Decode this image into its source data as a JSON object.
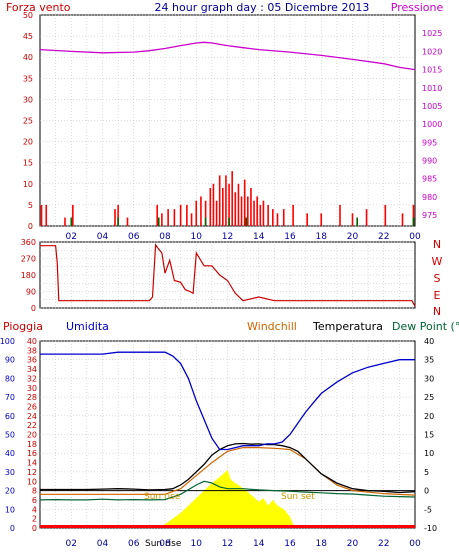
{
  "header": {
    "left_label": "Forza vento",
    "title": "24 hour graph day : 05 Dicembre 2013",
    "right_label": "Pressione"
  },
  "colors": {
    "wind": "#cc0000",
    "gust": "#ff0000",
    "pressure": "#cc00cc",
    "direction": "#cc0000",
    "rain": "#ff0000",
    "humidity": "#0000cc",
    "windchill": "#cc6600",
    "temperature": "#000000",
    "dewpoint": "#006633",
    "solar": "#ffff00",
    "axis_left": "#cc0000",
    "axis_right_pressure": "#cc00cc",
    "title": "#000099",
    "grid": "#bbbbbb",
    "frame": "#000000"
  },
  "x_tick_labels": [
    "02",
    "04",
    "06",
    "08",
    "10",
    "12",
    "14",
    "16",
    "18",
    "20",
    "22",
    "00"
  ],
  "panel_bottom": {
    "labels": {
      "rain": "Pioggia",
      "humidity": "Umidita",
      "windchill": "Windchill",
      "temperature": "Temperatura",
      "dewpoint": "Dew Point (°C",
      "sunrise_marker": "Sun rise",
      "sunset_marker": "Sun set",
      "sunrise_bottom": "Sun rise"
    }
  },
  "chart_data": [
    {
      "id": "wind-pressure",
      "type": "bar",
      "x_hours": [
        0,
        24
      ],
      "y_left": {
        "label": "Forza vento",
        "ylim": [
          0,
          50
        ],
        "ticks": [
          0,
          5,
          10,
          15,
          20,
          25,
          30,
          35,
          40,
          45,
          50
        ]
      },
      "y_right": {
        "label": "Pressione",
        "ylim": [
          972,
          1030
        ],
        "ticks": [
          975,
          980,
          985,
          990,
          995,
          1000,
          1005,
          1010,
          1015,
          1020,
          1025
        ]
      },
      "grid": true,
      "pressure": {
        "x": [
          0,
          2,
          4,
          6,
          7,
          8,
          9,
          10,
          10.5,
          11,
          12,
          13,
          14,
          16,
          18,
          20,
          22,
          23,
          24
        ],
        "y": [
          1020.5,
          1020.0,
          1019.6,
          1019.8,
          1020.2,
          1020.8,
          1021.6,
          1022.3,
          1022.5,
          1022.3,
          1021.6,
          1021.0,
          1020.5,
          1019.8,
          1018.9,
          1017.8,
          1016.6,
          1015.6,
          1015.0
        ]
      },
      "wind": {
        "x": [
          0.1,
          0.4,
          1.6,
          2.1,
          4.8,
          5.0,
          5.6,
          7.5,
          7.8,
          8.2,
          8.6,
          9.0,
          9.4,
          9.7,
          10.0,
          10.3,
          10.6,
          10.9,
          11.1,
          11.3,
          11.5,
          11.7,
          11.9,
          12.1,
          12.3,
          12.5,
          12.7,
          12.9,
          13.1,
          13.3,
          13.5,
          13.7,
          13.9,
          14.1,
          14.3,
          14.6,
          14.9,
          15.2,
          15.6,
          16.2,
          17.1,
          18.0,
          19.2,
          20.0,
          20.9,
          22.1,
          23.2,
          23.9
        ],
        "values": [
          5,
          5,
          2,
          5,
          4,
          5,
          2,
          5,
          3,
          4,
          4,
          5,
          5,
          3,
          6,
          7,
          6,
          9,
          10,
          6,
          12,
          9,
          12,
          10,
          13,
          8,
          10,
          7,
          11,
          7,
          9,
          6,
          7,
          5,
          6,
          5,
          4,
          3,
          4,
          5,
          3,
          3,
          5,
          3,
          4,
          5,
          3,
          5
        ]
      },
      "gust_ticks": {
        "x": [
          2.0,
          5.0,
          7.6,
          10.6,
          12.1,
          13.2,
          20.3,
          23.9
        ],
        "values": [
          2,
          2,
          2,
          2,
          2,
          2,
          2,
          2
        ]
      }
    },
    {
      "id": "wind-direction",
      "type": "line",
      "x_hours": [
        0,
        24
      ],
      "y_left": {
        "ylim": [
          0,
          360
        ],
        "ticks": [
          0,
          45,
          90,
          135,
          180,
          225,
          270,
          315,
          360
        ]
      },
      "y_right_labels": [
        "N",
        "W",
        "S",
        "E",
        "N"
      ],
      "grid": true,
      "series": [
        {
          "x": [
            0,
            1,
            1.1,
            1.2,
            2,
            3,
            4,
            5,
            6,
            7,
            7.2,
            7.4,
            7.6,
            7.8,
            8,
            8.3,
            8.6,
            9,
            9.3,
            9.6,
            9.8,
            10,
            10.5,
            11,
            11.5,
            12,
            12.5,
            13,
            13.5,
            14,
            15,
            16,
            18,
            20,
            22,
            23.8,
            24
          ],
          "y": [
            340,
            340,
            250,
            40,
            40,
            40,
            40,
            40,
            40,
            40,
            60,
            345,
            320,
            300,
            190,
            260,
            150,
            140,
            100,
            90,
            80,
            300,
            230,
            230,
            180,
            150,
            80,
            40,
            50,
            60,
            40,
            40,
            40,
            40,
            40,
            40,
            10
          ]
        }
      ]
    },
    {
      "id": "rain-humidity-temp",
      "type": "line",
      "x_hours": [
        0,
        24
      ],
      "y_humidity": {
        "label": "Umidita",
        "ylim": [
          0,
          100
        ],
        "ticks": [
          0,
          10,
          20,
          30,
          40,
          50,
          60,
          70,
          80,
          90,
          100
        ]
      },
      "y_rain": {
        "label": "Pioggia",
        "ylim": [
          0,
          40
        ],
        "ticks": [
          0,
          2,
          4,
          6,
          8,
          10,
          12,
          14,
          16,
          18,
          20,
          22,
          24,
          26,
          28,
          30,
          32,
          34,
          36,
          38,
          40
        ]
      },
      "y_temp": {
        "label": "Temperatura",
        "ylim": [
          -10,
          40
        ],
        "ticks": [
          -10,
          -5,
          0,
          5,
          10,
          15,
          20,
          25,
          30,
          35,
          40
        ]
      },
      "grid": true,
      "series": [
        {
          "name": "Umidita",
          "axis": "humidity",
          "x": [
            0,
            1,
            2,
            3,
            4,
            5,
            6,
            7,
            8,
            8.5,
            9,
            9.5,
            10,
            10.5,
            11,
            11.5,
            12,
            12.5,
            13,
            13.5,
            14,
            14.5,
            15,
            15.5,
            16,
            16.5,
            17,
            17.5,
            18,
            19,
            20,
            21,
            22,
            23,
            24
          ],
          "y": [
            93,
            93,
            93,
            93,
            93,
            94,
            94,
            94,
            94,
            92,
            88,
            80,
            68,
            58,
            48,
            42,
            42,
            43,
            44,
            44,
            44,
            45,
            45,
            46,
            50,
            56,
            62,
            67,
            72,
            78,
            83,
            86,
            88,
            90,
            90
          ]
        },
        {
          "name": "Temperatura",
          "axis": "temp",
          "x": [
            0,
            1,
            2,
            3,
            4,
            5,
            6,
            7,
            8,
            8.5,
            9,
            9.5,
            10,
            10.5,
            11,
            11.5,
            12,
            12.5,
            13,
            13.5,
            14,
            14.5,
            15,
            15.5,
            16,
            16.5,
            17,
            17.5,
            18,
            19,
            20,
            21,
            22,
            23,
            24
          ],
          "y": [
            0.3,
            0.3,
            0.3,
            0.3,
            0.4,
            0.5,
            0.4,
            0.2,
            0.3,
            0.5,
            1.5,
            3,
            5,
            7,
            9.5,
            11,
            12,
            12.5,
            12.6,
            12.4,
            12.5,
            12.3,
            12.3,
            12,
            11.5,
            10.5,
            8.5,
            6.5,
            4.5,
            2,
            0.5,
            0,
            -0.2,
            -0.5,
            -0.3
          ]
        },
        {
          "name": "Windchill",
          "axis": "temp",
          "x": [
            0,
            2,
            4,
            6,
            8,
            9,
            10,
            11,
            12,
            13,
            14,
            15,
            16,
            17,
            18,
            19,
            20,
            22,
            24
          ],
          "y": [
            -1,
            -1,
            -1,
            -1,
            -1,
            0.5,
            4,
            7.5,
            10.5,
            11.5,
            11.5,
            11.3,
            11,
            8.5,
            4.5,
            1.5,
            0,
            -0.8,
            -1.2
          ]
        },
        {
          "name": "Dew Point (°C",
          "axis": "temp",
          "x": [
            0,
            1,
            2,
            3,
            4,
            5,
            6,
            7,
            8,
            9,
            10,
            10.5,
            11,
            11.5,
            12,
            13,
            14,
            15,
            16,
            17,
            18,
            19,
            20,
            21,
            22,
            23,
            24
          ],
          "y": [
            -2.5,
            -2.4,
            -2.5,
            -2.5,
            -2.3,
            -2.5,
            -2.4,
            -2.5,
            -2.4,
            -1,
            1.5,
            2.5,
            2.0,
            1,
            0.5,
            0.5,
            0.2,
            0,
            -0.2,
            -0.4,
            -0.6,
            -0.8,
            -0.9,
            -1.2,
            -1.5,
            -1.6,
            -1.7
          ]
        },
        {
          "name": "Solar",
          "axis": "temp",
          "type": "area",
          "x": [
            7.5,
            8,
            8.5,
            9,
            9.5,
            10,
            10.5,
            11,
            11.3,
            11.6,
            12,
            12.2,
            12.5,
            12.8,
            13.2,
            13.6,
            14,
            14.3,
            14.6,
            14.9,
            15.2,
            15.6,
            16,
            16.2,
            16.5
          ],
          "y": [
            -10,
            -9,
            -7.5,
            -6,
            -4,
            -2,
            0,
            2,
            3,
            4,
            5.5,
            3,
            2,
            1.2,
            0,
            -1.5,
            -3,
            -2,
            -4,
            -2.5,
            -4,
            -5,
            -7,
            -9,
            -10
          ]
        }
      ],
      "rain_total": 0,
      "freezing_reference": 0
    }
  ]
}
